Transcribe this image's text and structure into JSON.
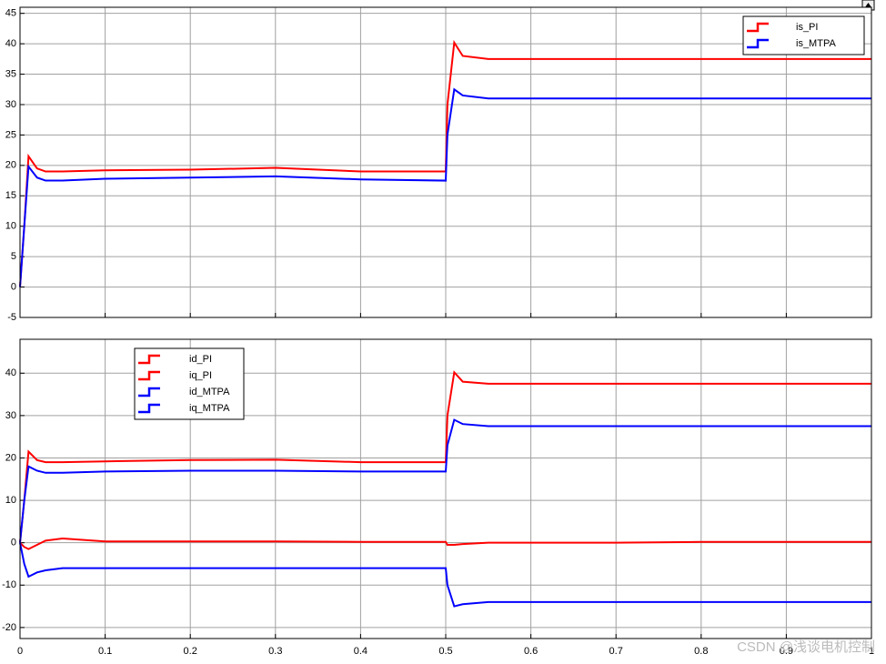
{
  "chart_data": [
    {
      "type": "line",
      "xlim": [
        0,
        1
      ],
      "ylim": [
        -5,
        46
      ],
      "xticks": [
        0,
        0.1,
        0.2,
        0.3,
        0.4,
        0.5,
        0.6,
        0.7,
        0.8,
        0.9,
        1
      ],
      "yticks": [
        -5,
        0,
        5,
        10,
        15,
        20,
        25,
        30,
        35,
        40,
        45
      ],
      "grid": true,
      "legend": "upper right",
      "x": [
        0,
        0.005,
        0.01,
        0.02,
        0.03,
        0.05,
        0.1,
        0.2,
        0.3,
        0.4,
        0.5,
        0.502,
        0.51,
        0.52,
        0.55,
        0.6,
        0.7,
        0.8,
        0.9,
        1.0
      ],
      "series": [
        {
          "name": "is_PI",
          "color": "#ff0000",
          "values": [
            0,
            10,
            21.5,
            19.5,
            19,
            19,
            19.2,
            19.3,
            19.6,
            19,
            19,
            30,
            40.2,
            38,
            37.5,
            37.5,
            37.5,
            37.5,
            37.5,
            37.5
          ]
        },
        {
          "name": "is_MTPA",
          "color": "#0000ff",
          "values": [
            0,
            10,
            19.8,
            18,
            17.5,
            17.5,
            17.8,
            18,
            18.2,
            17.7,
            17.5,
            25,
            32.5,
            31.5,
            31,
            31,
            31,
            31,
            31,
            31
          ]
        }
      ]
    },
    {
      "type": "line",
      "xlim": [
        0,
        1
      ],
      "ylim": [
        -22.6,
        48
      ],
      "xticks": [
        0,
        0.1,
        0.2,
        0.3,
        0.4,
        0.5,
        0.6,
        0.7,
        0.8,
        0.9,
        1
      ],
      "yticks": [
        -20,
        -10,
        0,
        10,
        20,
        30,
        40
      ],
      "grid": true,
      "legend": "upper left",
      "x": [
        0,
        0.005,
        0.01,
        0.02,
        0.03,
        0.05,
        0.1,
        0.2,
        0.3,
        0.4,
        0.5,
        0.502,
        0.51,
        0.52,
        0.55,
        0.6,
        0.7,
        0.8,
        0.9,
        1.0
      ],
      "series": [
        {
          "name": "id_PI",
          "color": "#ff0000",
          "values": [
            0,
            -1,
            -1.5,
            -0.5,
            0.5,
            1,
            0.3,
            0.3,
            0.3,
            0.2,
            0.2,
            -0.5,
            -0.5,
            -0.3,
            0,
            0,
            0,
            0.2,
            0.2,
            0.2
          ]
        },
        {
          "name": "iq_PI",
          "color": "#ff0000",
          "values": [
            0,
            10,
            21.5,
            19.5,
            19,
            19,
            19.2,
            19.5,
            19.6,
            19,
            19,
            30,
            40.2,
            38,
            37.5,
            37.5,
            37.5,
            37.5,
            37.5,
            37.5
          ]
        },
        {
          "name": "id_MTPA",
          "color": "#0000ff",
          "values": [
            0,
            -5,
            -8,
            -7,
            -6.5,
            -6,
            -6,
            -6,
            -6,
            -6,
            -6,
            -10,
            -15,
            -14.5,
            -14,
            -14,
            -14,
            -14,
            -14,
            -14
          ]
        },
        {
          "name": "iq_MTPA",
          "color": "#0000ff",
          "values": [
            0,
            10,
            18,
            17,
            16.5,
            16.5,
            16.8,
            17,
            17,
            16.8,
            16.8,
            23,
            29,
            28,
            27.5,
            27.5,
            27.5,
            27.5,
            27.5,
            27.5
          ]
        }
      ]
    }
  ],
  "watermark": "CSDN @浅谈电机控制"
}
